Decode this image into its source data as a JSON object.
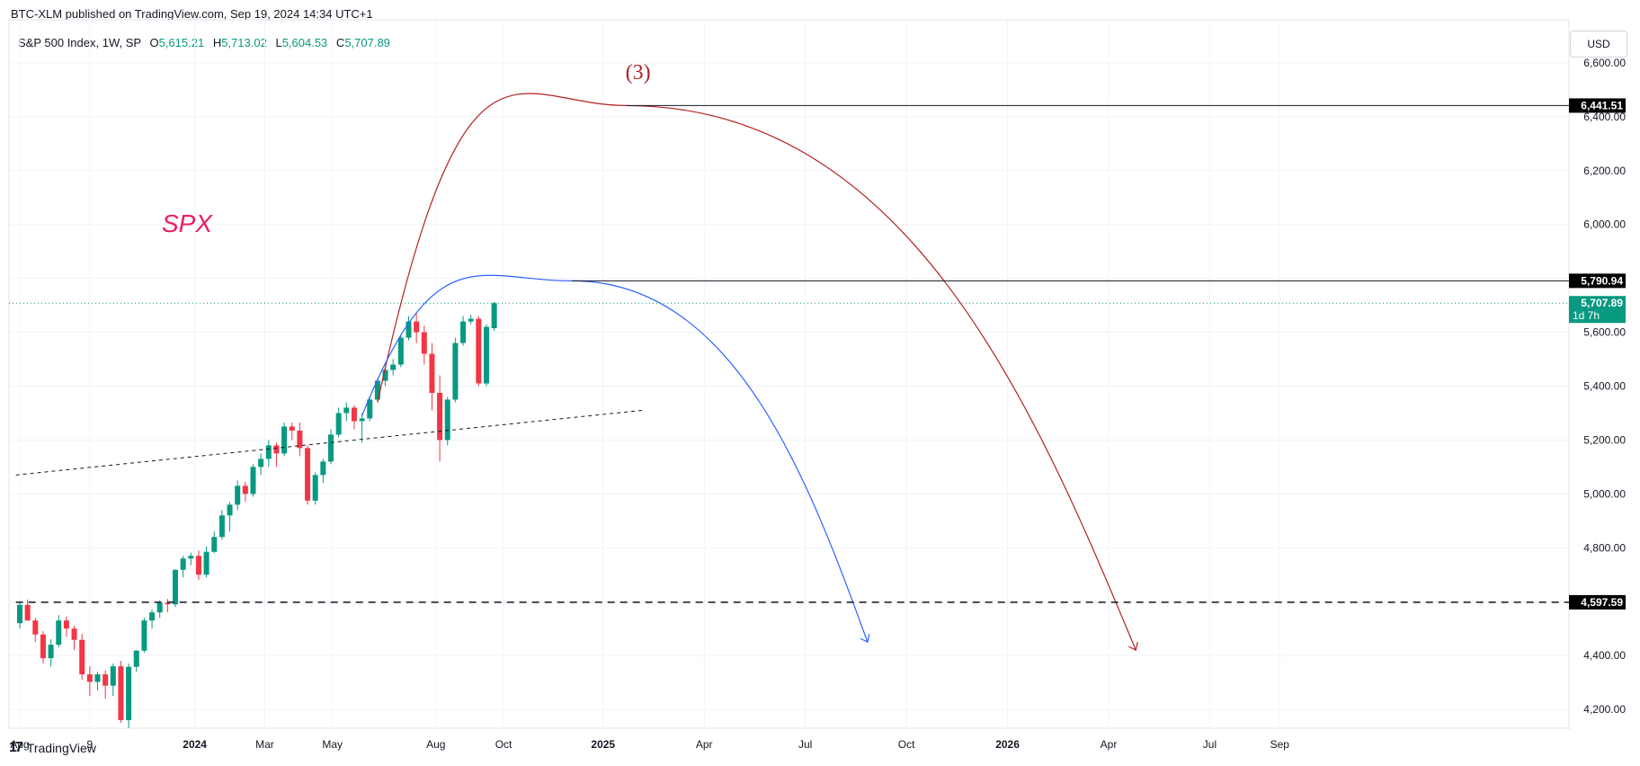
{
  "header": {
    "published": "BTC-XLM published on TradingView.com, Sep 19, 2024 14:34 UTC+1"
  },
  "legend": {
    "symbol": "S&P 500 Index, 1W, SP",
    "open_label": "O",
    "open": "5,615.21",
    "high_label": "H",
    "high": "5,713.02",
    "low_label": "L",
    "low": "5,604.53",
    "close_label": "C",
    "close": "5,707.89"
  },
  "currency_button": "USD",
  "footer": {
    "brand": "TradingView",
    "mark": "17"
  },
  "colors": {
    "up": "#089981",
    "down": "#f23645",
    "red_arc": "#b22222",
    "blue_arc": "#2962ff",
    "annotation_pink": "#e91e63"
  },
  "chart_data": {
    "type": "candlestick",
    "ylim": [
      4130,
      6760
    ],
    "y_ticks": [
      "4,200.00",
      "4,400.00",
      "4,600.00",
      "4,800.00",
      "5,000.00",
      "5,200.00",
      "5,400.00",
      "5,600.00",
      "5,800.00",
      "6,000.00",
      "6,200.00",
      "6,400.00",
      "6,600.00"
    ],
    "y_tick_values": [
      4200,
      4400,
      4600,
      4800,
      5000,
      5200,
      5400,
      5600,
      5800,
      6000,
      6200,
      6400,
      6600
    ],
    "x_ticks": [
      {
        "label": "Aug",
        "week": 0,
        "bold": false
      },
      {
        "label": "9",
        "week": 9,
        "bold": false
      },
      {
        "label": "2024",
        "week": 22.5,
        "bold": true
      },
      {
        "label": "Mar",
        "week": 31.5,
        "bold": false
      },
      {
        "label": "May",
        "week": 40.2,
        "bold": false
      },
      {
        "label": "Aug",
        "week": 53.5,
        "bold": false
      },
      {
        "label": "Oct",
        "week": 62.2,
        "bold": false
      },
      {
        "label": "2025",
        "week": 75,
        "bold": true
      },
      {
        "label": "Apr",
        "week": 88,
        "bold": false
      },
      {
        "label": "Jul",
        "week": 101,
        "bold": false
      },
      {
        "label": "Oct",
        "week": 114,
        "bold": false
      },
      {
        "label": "2026",
        "week": 127,
        "bold": true
      },
      {
        "label": "Apr",
        "week": 140,
        "bold": false
      },
      {
        "label": "Jul",
        "week": 153,
        "bold": false
      },
      {
        "label": "Sep",
        "week": 162,
        "bold": false
      }
    ],
    "candles": [
      [
        4520,
        4600,
        4500,
        4588
      ],
      [
        4588,
        4608,
        4530,
        4530
      ],
      [
        4530,
        4540,
        4450,
        4478
      ],
      [
        4478,
        4490,
        4370,
        4390
      ],
      [
        4390,
        4460,
        4360,
        4440
      ],
      [
        4440,
        4550,
        4430,
        4530
      ],
      [
        4530,
        4545,
        4470,
        4500
      ],
      [
        4500,
        4510,
        4420,
        4458
      ],
      [
        4458,
        4480,
        4310,
        4330
      ],
      [
        4330,
        4360,
        4250,
        4302
      ],
      [
        4302,
        4340,
        4270,
        4330
      ],
      [
        4330,
        4345,
        4240,
        4288
      ],
      [
        4288,
        4370,
        4250,
        4360
      ],
      [
        4360,
        4380,
        4150,
        4160
      ],
      [
        4160,
        4370,
        4130,
        4358
      ],
      [
        4358,
        4420,
        4340,
        4418
      ],
      [
        4418,
        4540,
        4410,
        4530
      ],
      [
        4530,
        4570,
        4500,
        4560
      ],
      [
        4560,
        4605,
        4540,
        4595
      ],
      [
        4595,
        4610,
        4560,
        4590
      ],
      [
        4590,
        4720,
        4580,
        4718
      ],
      [
        4718,
        4770,
        4690,
        4760
      ],
      [
        4760,
        4782,
        4735,
        4770
      ],
      [
        4770,
        4790,
        4680,
        4700
      ],
      [
        4700,
        4805,
        4690,
        4785
      ],
      [
        4785,
        4860,
        4780,
        4840
      ],
      [
        4840,
        4940,
        4830,
        4920
      ],
      [
        4920,
        4970,
        4860,
        4960
      ],
      [
        4960,
        5050,
        4940,
        5030
      ],
      [
        5030,
        5045,
        4970,
        5000
      ],
      [
        5000,
        5110,
        4990,
        5100
      ],
      [
        5100,
        5150,
        5070,
        5130
      ],
      [
        5130,
        5200,
        5100,
        5180
      ],
      [
        5180,
        5190,
        5100,
        5150
      ],
      [
        5150,
        5265,
        5140,
        5250
      ],
      [
        5250,
        5265,
        5200,
        5235
      ],
      [
        5235,
        5265,
        5140,
        5170
      ],
      [
        5170,
        5180,
        4960,
        4975
      ],
      [
        4975,
        5080,
        4960,
        5070
      ],
      [
        5070,
        5130,
        5040,
        5120
      ],
      [
        5120,
        5240,
        5110,
        5220
      ],
      [
        5220,
        5320,
        5210,
        5300
      ],
      [
        5300,
        5340,
        5270,
        5320
      ],
      [
        5320,
        5330,
        5240,
        5270
      ],
      [
        5270,
        5300,
        5190,
        5280
      ],
      [
        5280,
        5360,
        5270,
        5350
      ],
      [
        5350,
        5430,
        5340,
        5420
      ],
      [
        5420,
        5470,
        5400,
        5460
      ],
      [
        5460,
        5500,
        5440,
        5480
      ],
      [
        5480,
        5590,
        5470,
        5580
      ],
      [
        5580,
        5660,
        5570,
        5640
      ],
      [
        5640,
        5670,
        5560,
        5600
      ],
      [
        5600,
        5625,
        5480,
        5520
      ],
      [
        5520,
        5560,
        5310,
        5375
      ],
      [
        5375,
        5440,
        5120,
        5200
      ],
      [
        5200,
        5360,
        5180,
        5350
      ],
      [
        5350,
        5580,
        5340,
        5560
      ],
      [
        5560,
        5660,
        5550,
        5640
      ],
      [
        5640,
        5665,
        5630,
        5650
      ],
      [
        5650,
        5660,
        5400,
        5410
      ],
      [
        5410,
        5630,
        5400,
        5620
      ],
      [
        5615,
        5713,
        5605,
        5708
      ]
    ],
    "lines": [
      {
        "name": "red_arc",
        "type": "arc",
        "start_week": 46,
        "start_price": 5340,
        "peak_week": 78,
        "peak_price": 6441.51,
        "end_week": 143.5,
        "end_price": 4420
      },
      {
        "name": "blue_arc",
        "type": "arc",
        "start_week": 44,
        "start_price": 5290,
        "peak_week": 71,
        "peak_price": 5790.94,
        "end_week": 109,
        "end_price": 4450
      },
      {
        "name": "dashed_trend",
        "type": "dashed",
        "start_week": -0.5,
        "start_price": 5070,
        "end_week": 80,
        "end_price": 5310
      },
      {
        "name": "hline_high",
        "price": 6441.51,
        "start_week": 78
      },
      {
        "name": "hline_mid",
        "price": 5790.94,
        "start_week": 71
      },
      {
        "name": "hline_support",
        "price": 4597.59,
        "start_week": -0.5,
        "dashed": true
      }
    ],
    "price_labels": [
      {
        "text": "6,441.51",
        "price": 6441.51,
        "color": "#000000"
      },
      {
        "text": "5,790.94",
        "price": 5790.94,
        "color": "#000000"
      },
      {
        "text": "4,597.59",
        "price": 4597.59,
        "color": "#000000"
      },
      {
        "text": "5,707.89",
        "price": 5707.89,
        "color": "#089981",
        "sub": "1d 7h"
      }
    ],
    "annotations": [
      {
        "text": "(3)",
        "color": "#b22222"
      },
      {
        "text": "SPX",
        "color": "#e91e63"
      }
    ]
  }
}
